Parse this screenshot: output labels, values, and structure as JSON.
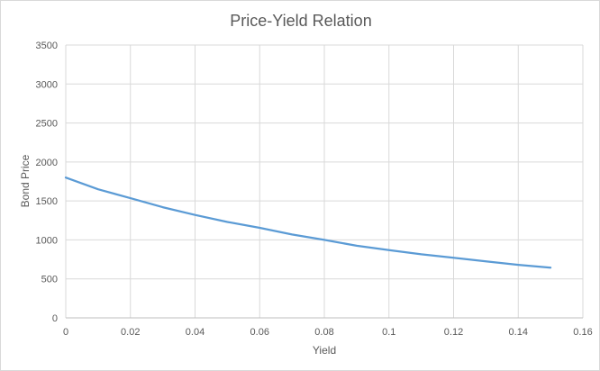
{
  "chart_data": {
    "type": "line",
    "title": "Price-Yield Relation",
    "xlabel": "Yield",
    "ylabel": "Bond Price",
    "xlim": [
      0,
      0.16
    ],
    "ylim": [
      0,
      3500
    ],
    "xticks": [
      0,
      0.02,
      0.04,
      0.06,
      0.08,
      0.1,
      0.12,
      0.14,
      0.16
    ],
    "xtick_labels": [
      "0",
      "0.02",
      "0.04",
      "0.06",
      "0.08",
      "0.1",
      "0.12",
      "0.14",
      "0.16"
    ],
    "yticks": [
      0,
      500,
      1000,
      1500,
      2000,
      2500,
      3000,
      3500
    ],
    "ytick_labels": [
      "0",
      "500",
      "1000",
      "1500",
      "2000",
      "2500",
      "3000",
      "3500"
    ],
    "grid": true,
    "legend": "none",
    "series": [
      {
        "color": "#5b9bd5",
        "x": [
          0,
          0.01,
          0.02,
          0.03,
          0.04,
          0.05,
          0.06,
          0.07,
          0.08,
          0.09,
          0.1,
          0.11,
          0.12,
          0.13,
          0.14,
          0.15
        ],
        "y": [
          1800,
          1650,
          1535,
          1420,
          1320,
          1230,
          1155,
          1070,
          1000,
          925,
          870,
          815,
          770,
          725,
          680,
          645
        ]
      }
    ]
  }
}
